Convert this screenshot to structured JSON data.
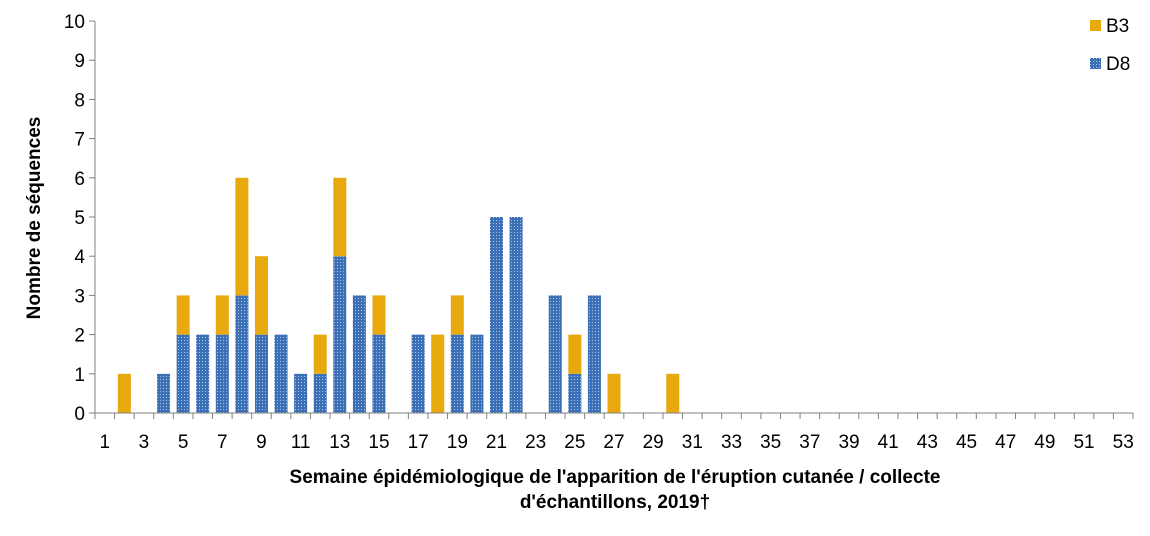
{
  "chart_data": {
    "type": "bar",
    "stacked": true,
    "title": "",
    "xlabel_lines": [
      "Semaine épidémiologique de l'apparition de l'éruption cutanée / collecte",
      "d'échantillons, 2019†"
    ],
    "ylabel": "Nombre de séquences",
    "ylim": [
      0,
      10
    ],
    "ytick_step": 1,
    "categories": [
      1,
      2,
      3,
      4,
      5,
      6,
      7,
      8,
      9,
      10,
      11,
      12,
      13,
      14,
      15,
      16,
      17,
      18,
      19,
      20,
      21,
      22,
      23,
      24,
      25,
      26,
      27,
      28,
      29,
      30,
      31,
      32,
      33,
      34,
      35,
      36,
      37,
      38,
      39,
      40,
      41,
      42,
      43,
      44,
      45,
      46,
      47,
      48,
      49,
      50,
      51,
      52,
      53
    ],
    "xtick_labels": [
      "1",
      "3",
      "5",
      "7",
      "9",
      "11",
      "13",
      "15",
      "17",
      "19",
      "21",
      "23",
      "25",
      "27",
      "29",
      "31",
      "33",
      "35",
      "37",
      "39",
      "41",
      "43",
      "45",
      "47",
      "49",
      "51",
      "53"
    ],
    "series": [
      {
        "name": "D8",
        "color": "#3B6FB6",
        "pattern": "dotted",
        "values": [
          0,
          0,
          0,
          1,
          2,
          2,
          2,
          3,
          2,
          2,
          1,
          1,
          4,
          3,
          2,
          0,
          2,
          0,
          2,
          2,
          5,
          5,
          0,
          3,
          1,
          3,
          0,
          0,
          0,
          0,
          0,
          0,
          0,
          0,
          0,
          0,
          0,
          0,
          0,
          0,
          0,
          0,
          0,
          0,
          0,
          0,
          0,
          0,
          0,
          0,
          0,
          0,
          0
        ]
      },
      {
        "name": "B3",
        "color": "#E8A90E",
        "pattern": "solid",
        "values": [
          0,
          1,
          0,
          0,
          1,
          0,
          1,
          3,
          2,
          0,
          0,
          1,
          2,
          0,
          1,
          0,
          0,
          2,
          1,
          0,
          0,
          0,
          0,
          0,
          1,
          0,
          1,
          0,
          0,
          1,
          0,
          0,
          0,
          0,
          0,
          0,
          0,
          0,
          0,
          0,
          0,
          0,
          0,
          0,
          0,
          0,
          0,
          0,
          0,
          0,
          0,
          0,
          0
        ]
      }
    ],
    "legend": {
      "placement": "top-right",
      "order": [
        "B3",
        "D8"
      ]
    },
    "grid": false
  }
}
